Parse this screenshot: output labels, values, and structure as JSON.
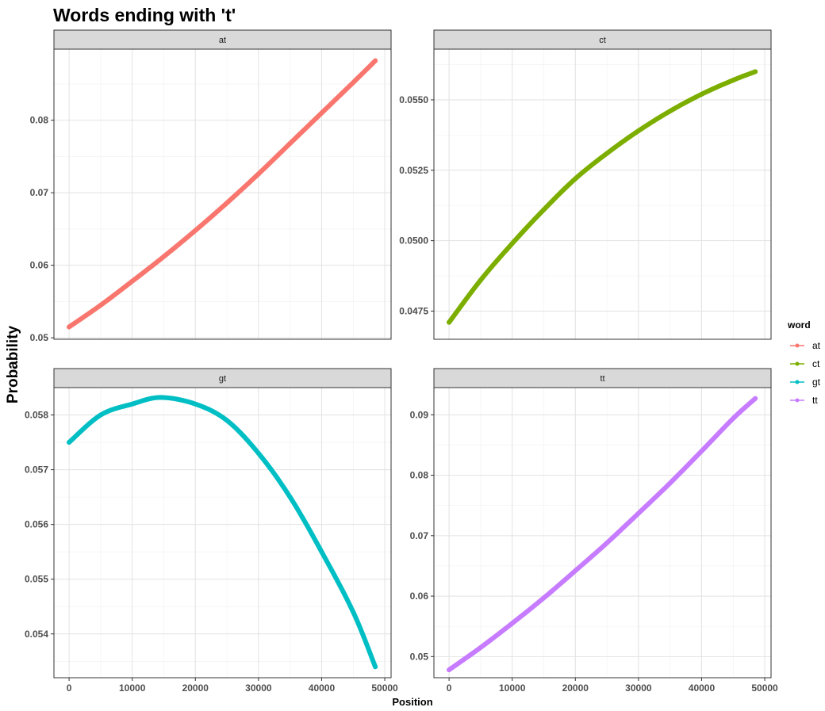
{
  "chart_data": {
    "type": "scatter",
    "title": "Words ending with 't'",
    "xlabel": "Position",
    "ylabel": "Probability",
    "legend": {
      "title": "word",
      "placement": "right",
      "entries": [
        {
          "label": "at",
          "color": "#F8766D"
        },
        {
          "label": "ct",
          "color": "#7CAE00"
        },
        {
          "label": "gt",
          "color": "#00BFC4"
        },
        {
          "label": "tt",
          "color": "#C77CFF"
        }
      ]
    },
    "grid": true,
    "x_ticks": [
      0,
      10000,
      20000,
      30000,
      40000,
      50000
    ],
    "x_tick_labels": [
      "0",
      "10000",
      "20000",
      "30000",
      "40000",
      "50000"
    ],
    "xlim": [
      -2400,
      51000
    ],
    "panels": [
      {
        "label": "at",
        "color": "#F8766D",
        "ylim": [
          0.0498,
          0.0898
        ],
        "y_ticks": [
          0.05,
          0.06,
          0.07,
          0.08
        ],
        "y_tick_labels": [
          "0.05",
          "0.06",
          "0.07",
          "0.08"
        ],
        "x": [
          0,
          5000,
          10000,
          15000,
          20000,
          25000,
          30000,
          35000,
          40000,
          45000,
          48500
        ],
        "y": [
          0.0515,
          0.0545,
          0.0578,
          0.0612,
          0.0648,
          0.0686,
          0.0726,
          0.0768,
          0.081,
          0.0852,
          0.0882
        ]
      },
      {
        "label": "ct",
        "color": "#7CAE00",
        "ylim": [
          0.0465,
          0.0568
        ],
        "y_ticks": [
          0.0475,
          0.05,
          0.0525,
          0.055
        ],
        "y_tick_labels": [
          "0.0475",
          "0.0500",
          "0.0525",
          "0.0550"
        ],
        "x": [
          0,
          5000,
          10000,
          15000,
          20000,
          25000,
          30000,
          35000,
          40000,
          45000,
          48500
        ],
        "y": [
          0.0471,
          0.0486,
          0.0499,
          0.0511,
          0.0522,
          0.0531,
          0.0539,
          0.0546,
          0.0552,
          0.0557,
          0.056
        ]
      },
      {
        "label": "gt",
        "color": "#00BFC4",
        "ylim": [
          0.0532,
          0.0585
        ],
        "y_ticks": [
          0.054,
          0.055,
          0.056,
          0.057,
          0.058
        ],
        "y_tick_labels": [
          "0.054",
          "0.055",
          "0.056",
          "0.057",
          "0.058"
        ],
        "x": [
          0,
          5000,
          10000,
          14500,
          20000,
          25000,
          30000,
          35000,
          40000,
          45000,
          48500
        ],
        "y": [
          0.0575,
          0.058,
          0.0582,
          0.05832,
          0.0582,
          0.0579,
          0.0573,
          0.0565,
          0.0555,
          0.0544,
          0.0534
        ]
      },
      {
        "label": "tt",
        "color": "#C77CFF",
        "ylim": [
          0.0465,
          0.0945
        ],
        "y_ticks": [
          0.05,
          0.06,
          0.07,
          0.08,
          0.09
        ],
        "y_tick_labels": [
          "0.05",
          "0.06",
          "0.07",
          "0.08",
          "0.09"
        ],
        "x": [
          0,
          5000,
          10000,
          15000,
          20000,
          25000,
          30000,
          35000,
          40000,
          45000,
          48500
        ],
        "y": [
          0.0478,
          0.0515,
          0.0555,
          0.0597,
          0.0642,
          0.0688,
          0.0737,
          0.0787,
          0.084,
          0.0894,
          0.0927
        ]
      }
    ]
  }
}
